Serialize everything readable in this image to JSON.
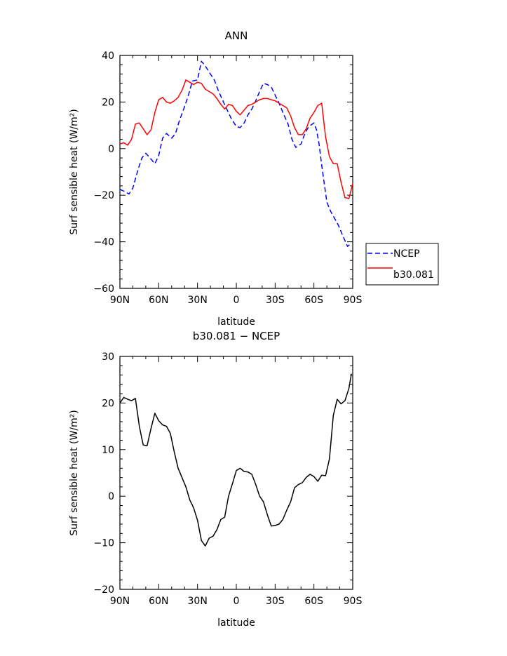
{
  "chart_data": [
    {
      "type": "line",
      "title": "ANN",
      "xlabel": "latitude",
      "ylabel": "Surf sensible heat (W/m²)",
      "xlim": [
        90,
        -90
      ],
      "ylim": [
        -60,
        40
      ],
      "x_ticks": [
        90,
        60,
        30,
        0,
        -30,
        -60,
        -90
      ],
      "x_tick_labels": [
        "90N",
        "60N",
        "30N",
        "0",
        "30S",
        "60S",
        "90S"
      ],
      "y_ticks": [
        -60,
        -40,
        -20,
        0,
        20,
        40
      ],
      "y_tick_labels": [
        "−60",
        "−40",
        "−20",
        "0",
        "20",
        "40"
      ],
      "legend_position": "right, outside plot",
      "series": [
        {
          "name": "NCEP",
          "color": "#0000ff",
          "dash": "dashed",
          "x": [
            90,
            86,
            83,
            80,
            76,
            73,
            70,
            66,
            63,
            60,
            57,
            54,
            50,
            47,
            44,
            40,
            37,
            34,
            30,
            27,
            24,
            20,
            17,
            14,
            10,
            7,
            4,
            0,
            -3,
            -6,
            -9,
            -12,
            -15,
            -18,
            -21,
            -24,
            -27,
            -30,
            -33,
            -36,
            -40,
            -43,
            -46,
            -50,
            -53,
            -56,
            -60,
            -62,
            -64,
            -66,
            -68,
            -70,
            -73,
            -76,
            -79,
            -82,
            -86,
            -89
          ],
          "y": [
            -17.5,
            -18.5,
            -19.5,
            -17,
            -9,
            -4,
            -2,
            -4.5,
            -6.5,
            -3,
            4.5,
            6.5,
            4.5,
            6.5,
            12,
            18,
            23,
            29,
            29.5,
            37.5,
            35.5,
            32,
            29.5,
            25,
            20,
            16.5,
            13,
            9.5,
            9,
            11,
            14.5,
            17,
            20.5,
            24.5,
            28,
            27.5,
            26.5,
            23,
            19.5,
            15.5,
            10.5,
            4,
            0.5,
            2,
            6.5,
            9.5,
            11,
            8,
            2,
            -7,
            -15,
            -23,
            -27,
            -30,
            -33,
            -37,
            -42,
            -40.5
          ]
        },
        {
          "name": "b30.081",
          "color": "#ff0000",
          "dash": "solid",
          "x": [
            90,
            87,
            84,
            81,
            78,
            75,
            72,
            69,
            66,
            63,
            60,
            57,
            54,
            51,
            48,
            45,
            42,
            39,
            36,
            33,
            30,
            27,
            24,
            21,
            18,
            15,
            12,
            9,
            6,
            3,
            0,
            -3,
            -6,
            -9,
            -12,
            -15,
            -18,
            -21,
            -24,
            -27,
            -30,
            -33,
            -36,
            -39,
            -42,
            -45,
            -48,
            -51,
            -54,
            -57,
            -60,
            -63,
            -66,
            -69,
            -72,
            -75,
            -78,
            -81,
            -84,
            -87,
            -90
          ],
          "y": [
            2,
            2.5,
            1.5,
            4,
            10.5,
            11,
            8.5,
            6,
            8,
            15.5,
            21,
            22,
            20,
            19.5,
            20.5,
            22,
            25,
            29.5,
            28.5,
            27.5,
            28.5,
            28,
            25.5,
            24.5,
            23.5,
            21.5,
            19,
            17,
            19,
            18.5,
            16,
            14.5,
            16.5,
            18.5,
            19,
            20,
            21,
            21.5,
            21.5,
            21,
            20.5,
            19.5,
            18.5,
            17.5,
            14,
            9,
            6,
            6,
            8.5,
            13,
            15.5,
            18.5,
            19.5,
            5,
            -3.5,
            -6.5,
            -6.5,
            -14.5,
            -21,
            -21.5,
            -15
          ]
        }
      ]
    },
    {
      "type": "line",
      "title": "b30.081 − NCEP",
      "xlabel": "latitude",
      "ylabel": "Surf sensible heat (W/m²)",
      "xlim": [
        90,
        -90
      ],
      "ylim": [
        -20,
        30
      ],
      "x_ticks": [
        90,
        60,
        30,
        0,
        -30,
        -60,
        -90
      ],
      "x_tick_labels": [
        "90N",
        "60N",
        "30N",
        "0",
        "30S",
        "60S",
        "90S"
      ],
      "y_ticks": [
        -20,
        -10,
        0,
        10,
        20,
        30
      ],
      "y_tick_labels": [
        "−20",
        "−10",
        "0",
        "10",
        "20",
        "30"
      ],
      "series": [
        {
          "color": "#000000",
          "dash": "solid",
          "x": [
            90,
            87,
            84,
            81,
            78,
            75,
            72,
            69,
            66,
            63,
            60,
            57,
            54,
            51,
            48,
            45,
            42,
            39,
            36,
            33,
            30,
            27,
            24,
            21,
            18,
            15,
            12,
            9,
            6,
            3,
            0,
            -3,
            -6,
            -9,
            -12,
            -15,
            -18,
            -21,
            -24,
            -27,
            -30,
            -33,
            -36,
            -39,
            -42,
            -45,
            -48,
            -51,
            -54,
            -57,
            -60,
            -63,
            -66,
            -69,
            -72,
            -75,
            -78,
            -81,
            -84,
            -87,
            -89
          ],
          "y": [
            20,
            21.2,
            20.8,
            20.5,
            21,
            15,
            11,
            10.8,
            14.5,
            17.8,
            16.2,
            15.3,
            15,
            13.5,
            9.5,
            6,
            4,
            2,
            -0.8,
            -2.5,
            -5.2,
            -9.5,
            -10.7,
            -9,
            -8.6,
            -7.2,
            -5,
            -4.5,
            0,
            2.7,
            5.5,
            6,
            5.3,
            5.2,
            4.7,
            2.5,
            0,
            -1.2,
            -4,
            -6.4,
            -6.3,
            -6,
            -5,
            -3,
            -1.2,
            1.8,
            2.5,
            2.9,
            4,
            4.7,
            4.2,
            3.2,
            4.5,
            4.4,
            8,
            17.3,
            20.8,
            19.8,
            20.5,
            23.1,
            26.3
          ]
        }
      ]
    }
  ]
}
